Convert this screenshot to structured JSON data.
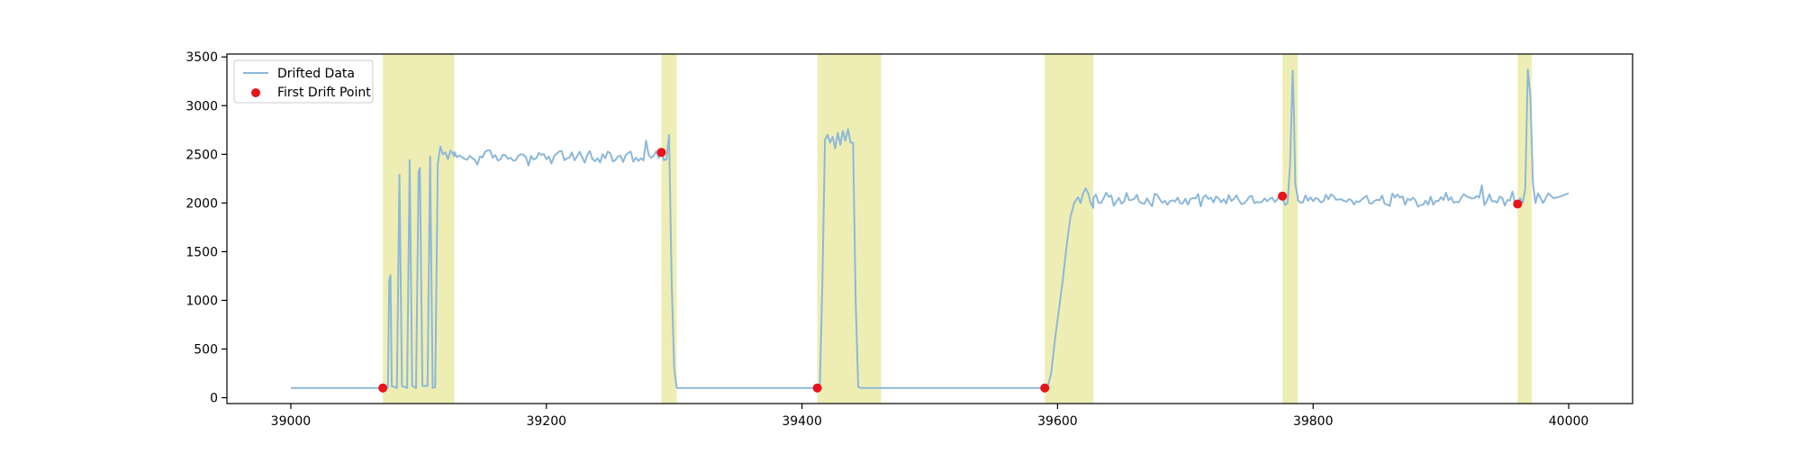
{
  "chart_data": {
    "type": "line",
    "title": "",
    "xlabel": "",
    "ylabel": "",
    "xlim": [
      38950,
      40050
    ],
    "ylim": [
      -60,
      3530
    ],
    "xticks": [
      39000,
      39200,
      39400,
      39600,
      39800,
      40000
    ],
    "yticks": [
      0,
      500,
      1000,
      1500,
      2000,
      2500,
      3000,
      3500
    ],
    "grid": false,
    "legend_location": "top-left",
    "legend": [
      {
        "label": "Drifted Data",
        "kind": "line",
        "color": "#8db8d9"
      },
      {
        "label": "First Drift Point",
        "kind": "marker",
        "color": "#e8141c"
      }
    ],
    "colors": {
      "line": "#8db8d9",
      "drift_point": "#e8141c",
      "drift_region": "#eeeeb4"
    },
    "drift_regions": [
      [
        39072,
        39128
      ],
      [
        39290,
        39302
      ],
      [
        39412,
        39462
      ],
      [
        39590,
        39628
      ],
      [
        39776,
        39788
      ],
      [
        39960,
        39971
      ]
    ],
    "drift_points": [
      {
        "x": 39072,
        "y": 100
      },
      {
        "x": 39290,
        "y": 2520
      },
      {
        "x": 39412,
        "y": 100
      },
      {
        "x": 39590,
        "y": 100
      },
      {
        "x": 39776,
        "y": 2070
      },
      {
        "x": 39960,
        "y": 1990
      }
    ],
    "series": [
      {
        "name": "Drifted Data",
        "segments": [
          {
            "kind": "flat",
            "x0": 39000,
            "x1": 39072,
            "y": 100
          },
          {
            "kind": "points",
            "points": [
              [
                39072,
                100
              ],
              [
                39074,
                100
              ],
              [
                39076,
                100
              ],
              [
                39077,
                1200
              ],
              [
                39078,
                1260
              ],
              [
                39079,
                120
              ],
              [
                39083,
                100
              ],
              [
                39085,
                2290
              ],
              [
                39087,
                120
              ],
              [
                39091,
                100
              ],
              [
                39093,
                2440
              ],
              [
                39095,
                120
              ],
              [
                39098,
                100
              ],
              [
                39100,
                2320
              ],
              [
                39101,
                2360
              ],
              [
                39103,
                120
              ],
              [
                39107,
                120
              ],
              [
                39109,
                2480
              ],
              [
                39111,
                100
              ],
              [
                39113,
                110
              ],
              [
                39115,
                2400
              ],
              [
                39117,
                2580
              ],
              [
                39119,
                2500
              ],
              [
                39121,
                2520
              ],
              [
                39123,
                2450
              ],
              [
                39125,
                2540
              ],
              [
                39128,
                2480
              ]
            ]
          },
          {
            "kind": "noise",
            "x0": 39128,
            "x1": 39288,
            "base": 2470,
            "amp": 60,
            "spikes": [
              [
                39278,
                2640
              ]
            ]
          },
          {
            "kind": "points",
            "points": [
              [
                39288,
                2500
              ],
              [
                39290,
                2520
              ],
              [
                39292,
                2440
              ],
              [
                39294,
                2450
              ],
              [
                39296,
                2700
              ],
              [
                39298,
                1200
              ],
              [
                39300,
                300
              ],
              [
                39302,
                100
              ]
            ]
          },
          {
            "kind": "flat",
            "x0": 39302,
            "x1": 39412,
            "y": 100
          },
          {
            "kind": "points",
            "points": [
              [
                39412,
                100
              ],
              [
                39414,
                110
              ],
              [
                39416,
                1200
              ],
              [
                39418,
                2650
              ],
              [
                39420,
                2700
              ],
              [
                39422,
                2620
              ],
              [
                39424,
                2680
              ],
              [
                39426,
                2560
              ],
              [
                39428,
                2720
              ],
              [
                39430,
                2600
              ],
              [
                39432,
                2740
              ],
              [
                39434,
                2640
              ],
              [
                39436,
                2760
              ],
              [
                39438,
                2620
              ],
              [
                39440,
                2620
              ],
              [
                39442,
                1000
              ],
              [
                39444,
                110
              ],
              [
                39446,
                100
              ]
            ]
          },
          {
            "kind": "flat",
            "x0": 39446,
            "x1": 39590,
            "y": 100
          },
          {
            "kind": "points",
            "points": [
              [
                39590,
                100
              ],
              [
                39592,
                100
              ],
              [
                39595,
                250
              ],
              [
                39598,
                600
              ],
              [
                39601,
                900
              ],
              [
                39604,
                1200
              ],
              [
                39607,
                1550
              ],
              [
                39610,
                1850
              ],
              [
                39613,
                2000
              ],
              [
                39616,
                2060
              ],
              [
                39618,
                2000
              ],
              [
                39620,
                2100
              ],
              [
                39622,
                2150
              ],
              [
                39624,
                2100
              ],
              [
                39626,
                2000
              ],
              [
                39628,
                1950
              ]
            ]
          },
          {
            "kind": "noise",
            "x0": 39628,
            "x1": 39776,
            "base": 2040,
            "amp": 55,
            "spikes": []
          },
          {
            "kind": "points",
            "points": [
              [
                39776,
                2070
              ],
              [
                39778,
                1980
              ],
              [
                39780,
                2000
              ],
              [
                39782,
                2400
              ],
              [
                39784,
                3360
              ],
              [
                39785,
                2900
              ],
              [
                39786,
                2200
              ],
              [
                39788,
                2050
              ]
            ]
          },
          {
            "kind": "noise",
            "x0": 39788,
            "x1": 39958,
            "base": 2040,
            "amp": 55,
            "spikes": [
              [
                39932,
                2180
              ]
            ]
          },
          {
            "kind": "points",
            "points": [
              [
                39958,
                2020
              ],
              [
                39960,
                1990
              ],
              [
                39962,
                2050
              ],
              [
                39964,
                2000
              ],
              [
                39966,
                2150
              ],
              [
                39968,
                3370
              ],
              [
                39970,
                3100
              ],
              [
                39972,
                2200
              ],
              [
                39974,
                2000
              ],
              [
                39976,
                2100
              ],
              [
                39980,
                2000
              ],
              [
                39984,
                2100
              ],
              [
                39988,
                2050
              ],
              [
                39992,
                2060
              ],
              [
                39996,
                2080
              ],
              [
                40000,
                2100
              ]
            ]
          }
        ]
      }
    ]
  }
}
